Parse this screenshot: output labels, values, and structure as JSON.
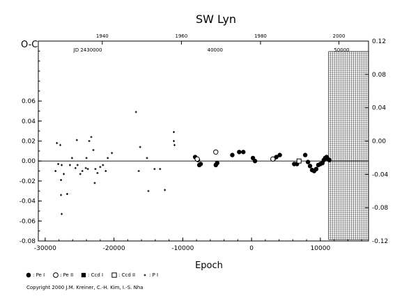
{
  "chart_data": {
    "type": "scatter",
    "title": "SW Lyn",
    "xlabel": "Epoch",
    "ylabel": "O-C",
    "xlim": [
      -31000,
      17000
    ],
    "ylim": [
      -0.08,
      0.12
    ],
    "grid": false,
    "x_ticks": [
      "-30000",
      "-20000",
      "-10000",
      "0",
      "10000"
    ],
    "x_tick_values": [
      -30000,
      -20000,
      -10000,
      0,
      10000
    ],
    "y_ticks": [
      "-0.08",
      "-0.06",
      "-0.04",
      "-0.02",
      "0.00",
      "0.02",
      "0.04",
      "0.06"
    ],
    "y_tick_values": [
      -0.08,
      -0.06,
      -0.04,
      -0.02,
      0.0,
      0.02,
      0.04,
      0.06
    ],
    "right_ticks": [
      "-0.12",
      "-0.08",
      "-0.04",
      "0.00",
      "0.04",
      "0.08",
      "0.12"
    ],
    "right_tick_values": [
      -0.12,
      -0.08,
      -0.04,
      0.0,
      0.04,
      0.08,
      0.12
    ],
    "right_ylim": [
      -0.12,
      0.12
    ],
    "top_year_ticks": [
      "1940",
      "1960",
      "1980",
      "2000"
    ],
    "top_year_epochs": [
      -21700,
      -10200,
      1300,
      12700
    ],
    "top_jd_ticks": [
      "JD 2430000",
      "40000",
      "50000"
    ],
    "top_jd_epochs": [
      -23800,
      -5300,
      13100
    ],
    "future_region_start": 11200,
    "legend": [
      {
        "label": ": Pe I",
        "marker": "filled-circle"
      },
      {
        "label": ": Pe II",
        "marker": "open-circle"
      },
      {
        "label": ": Ccd I",
        "marker": "filled-square"
      },
      {
        "label": ": Ccd II",
        "marker": "open-square"
      },
      {
        "label": ": P I",
        "marker": "plus"
      }
    ],
    "series": [
      {
        "name": "Pe I",
        "marker": "filled-circle",
        "points": [
          [
            -8200,
            0.004
          ],
          [
            -7800,
            0.001
          ],
          [
            -7600,
            -0.004
          ],
          [
            -7400,
            -0.003
          ],
          [
            -5200,
            -0.004
          ],
          [
            -5000,
            -0.002
          ],
          [
            -2800,
            0.006
          ],
          [
            -1800,
            0.009
          ],
          [
            -1200,
            0.009
          ],
          [
            200,
            0.003
          ],
          [
            500,
            0.0
          ],
          [
            3200,
            0.002
          ],
          [
            3600,
            0.004
          ],
          [
            4100,
            0.006
          ],
          [
            6200,
            -0.003
          ],
          [
            6600,
            -0.003
          ],
          [
            7800,
            0.006
          ],
          [
            8200,
            -0.001
          ],
          [
            8500,
            -0.005
          ],
          [
            8800,
            -0.009
          ],
          [
            9100,
            -0.01
          ],
          [
            9400,
            -0.008
          ],
          [
            9700,
            -0.004
          ],
          [
            10000,
            -0.003
          ],
          [
            10300,
            -0.002
          ],
          [
            10500,
            0.001
          ],
          [
            10700,
            0.003
          ],
          [
            10900,
            0.004
          ],
          [
            11100,
            0.002
          ],
          [
            11300,
            0.001
          ]
        ]
      },
      {
        "name": "Pe II",
        "marker": "open-circle",
        "points": [
          [
            -7900,
            0.002
          ],
          [
            -5200,
            0.009
          ],
          [
            3100,
            0.002
          ]
        ]
      },
      {
        "name": "Ccd I",
        "marker": "filled-square",
        "points": [
          [
            6900,
            0.0
          ]
        ]
      },
      {
        "name": "Ccd II",
        "marker": "open-square",
        "points": [
          [
            6900,
            0.0
          ]
        ]
      },
      {
        "name": "P I",
        "marker": "plus",
        "points": [
          [
            -28300,
            0.018
          ],
          [
            -27800,
            0.016
          ],
          [
            -28500,
            -0.01
          ],
          [
            -28100,
            -0.003
          ],
          [
            -27600,
            -0.004
          ],
          [
            -27300,
            -0.013
          ],
          [
            -27700,
            -0.019
          ],
          [
            -27700,
            -0.034
          ],
          [
            -26800,
            -0.033
          ],
          [
            -27600,
            -0.053
          ],
          [
            -26400,
            -0.004
          ],
          [
            -26100,
            0.003
          ],
          [
            -25600,
            -0.007
          ],
          [
            -25400,
            0.021
          ],
          [
            -24900,
            -0.013
          ],
          [
            -24600,
            -0.01
          ],
          [
            -24000,
            0.003
          ],
          [
            -24100,
            -0.007
          ],
          [
            -23600,
            0.02
          ],
          [
            -23300,
            0.024
          ],
          [
            -23000,
            0.011
          ],
          [
            -22700,
            -0.008
          ],
          [
            -22400,
            -0.012
          ],
          [
            -22000,
            -0.006
          ],
          [
            -21600,
            -0.004
          ],
          [
            -21200,
            -0.01
          ],
          [
            -20900,
            0.003
          ],
          [
            -22800,
            -0.022
          ],
          [
            -23800,
            -0.008
          ],
          [
            -25300,
            -0.004
          ],
          [
            -20300,
            0.008
          ],
          [
            -16800,
            0.049
          ],
          [
            -16200,
            0.014
          ],
          [
            -16400,
            -0.01
          ],
          [
            -15200,
            0.003
          ],
          [
            -15000,
            -0.03
          ],
          [
            -14100,
            -0.008
          ],
          [
            -13300,
            -0.008
          ],
          [
            -12600,
            -0.029
          ],
          [
            -11300,
            0.029
          ],
          [
            -11300,
            0.02
          ],
          [
            -11200,
            0.016
          ]
        ]
      }
    ]
  },
  "copyright": "Copyright 2000 J.M. Kreiner, C.-H. Kim, I.-S. Nha"
}
